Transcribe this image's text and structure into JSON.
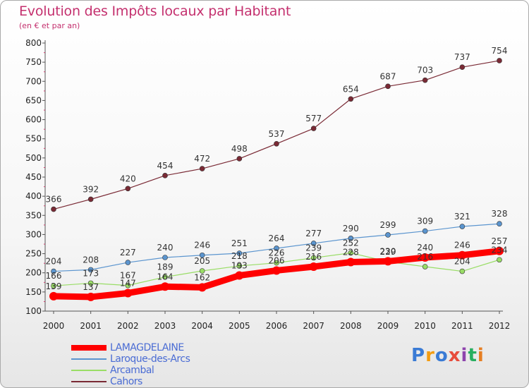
{
  "title": "Evolution des Impôts locaux par Habitant",
  "subtitle": "(en € et par an)",
  "logo": {
    "text": "Proxiti"
  },
  "chart_data": {
    "type": "line",
    "title": "Evolution des Impôts locaux par Habitant",
    "xlabel": "",
    "ylabel": "(en € et par an)",
    "categories": [
      "2000",
      "2001",
      "2002",
      "2003",
      "2004",
      "2005",
      "2006",
      "2007",
      "2008",
      "2009",
      "2010",
      "2011",
      "2012"
    ],
    "ylim": [
      100,
      800
    ],
    "yticks": [
      100,
      150,
      200,
      250,
      300,
      350,
      400,
      450,
      500,
      550,
      600,
      650,
      700,
      750,
      800
    ],
    "grid": false,
    "legend_position": "bottom-left",
    "series": [
      {
        "name": "LAMAGDELAINE",
        "color": "#ff0000",
        "values": [
          139,
          137,
          147,
          164,
          162,
          193,
          206,
          216,
          228,
          230,
          240,
          246,
          257
        ]
      },
      {
        "name": "Laroque-des-Arcs",
        "color": "#5b95cf",
        "values": [
          204,
          208,
          227,
          240,
          246,
          251,
          264,
          277,
          290,
          299,
          309,
          321,
          328
        ]
      },
      {
        "name": "Arcambal",
        "color": "#99dd66",
        "values": [
          166,
          173,
          167,
          189,
          205,
          218,
          226,
          239,
          252,
          229,
          216,
          204,
          234
        ]
      },
      {
        "name": "Cahors",
        "color": "#7a2a35",
        "values": [
          366,
          392,
          420,
          454,
          472,
          498,
          537,
          577,
          654,
          687,
          703,
          737,
          754
        ]
      }
    ]
  }
}
